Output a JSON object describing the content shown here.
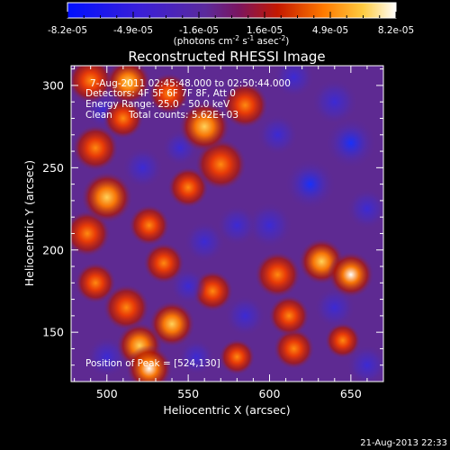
{
  "chart_data": {
    "type": "heatmap",
    "title": "Reconstructed RHESSI Image",
    "xlabel": "Heliocentric X (arcsec)",
    "ylabel": "Heliocentric Y (arcsec)",
    "xlim": [
      478,
      670
    ],
    "ylim": [
      120,
      312
    ],
    "x_ticks": [
      500,
      550,
      600,
      650
    ],
    "y_ticks": [
      150,
      200,
      250,
      300
    ],
    "colorbar": {
      "ticks": [
        "-8.2e-05",
        "-4.9e-05",
        "-1.6e-05",
        "1.6e-05",
        "4.9e-05",
        "8.2e-05"
      ],
      "label_parts": [
        "(photons cm",
        "-2",
        " s",
        "-1",
        " asec",
        "-2",
        ")"
      ],
      "range": [
        -8.2e-05,
        8.2e-05
      ]
    },
    "annotations": {
      "time_range": "7-Aug-2011 02:45:48.000 to 02:50:44.000",
      "detectors": "Detectors: 4F 5F 6F 7F 8F, Att 0",
      "energy": "Energy Range: 25.0 - 50.0 keV",
      "method": "Clean",
      "total_counts": "Total counts: 5.62E+03",
      "position_of_peak": "Position of Peak = [524,130]"
    },
    "peak": [
      524,
      130
    ],
    "blobs": [
      {
        "x": 490,
        "y": 303,
        "a": 0.9,
        "r": 9
      },
      {
        "x": 513,
        "y": 302,
        "a": 1.0,
        "r": 9
      },
      {
        "x": 538,
        "y": 295,
        "a": 0.8,
        "r": 8
      },
      {
        "x": 510,
        "y": 280,
        "a": 0.7,
        "r": 8
      },
      {
        "x": 493,
        "y": 262,
        "a": 0.8,
        "r": 9
      },
      {
        "x": 500,
        "y": 232,
        "a": 1.2,
        "r": 10
      },
      {
        "x": 488,
        "y": 210,
        "a": 0.9,
        "r": 9
      },
      {
        "x": 526,
        "y": 215,
        "a": 0.6,
        "r": 8
      },
      {
        "x": 560,
        "y": 275,
        "a": 1.0,
        "r": 10
      },
      {
        "x": 570,
        "y": 252,
        "a": 0.9,
        "r": 10
      },
      {
        "x": 550,
        "y": 238,
        "a": 0.8,
        "r": 8
      },
      {
        "x": 585,
        "y": 288,
        "a": 0.6,
        "r": 9
      },
      {
        "x": 535,
        "y": 192,
        "a": 0.7,
        "r": 8
      },
      {
        "x": 493,
        "y": 180,
        "a": 0.6,
        "r": 8
      },
      {
        "x": 512,
        "y": 165,
        "a": 0.8,
        "r": 9
      },
      {
        "x": 540,
        "y": 155,
        "a": 1.0,
        "r": 9
      },
      {
        "x": 520,
        "y": 142,
        "a": 1.1,
        "r": 9
      },
      {
        "x": 526,
        "y": 128,
        "a": 1.5,
        "r": 9
      },
      {
        "x": 565,
        "y": 175,
        "a": 0.5,
        "r": 8
      },
      {
        "x": 605,
        "y": 185,
        "a": 0.8,
        "r": 9
      },
      {
        "x": 632,
        "y": 193,
        "a": 1.0,
        "r": 9
      },
      {
        "x": 650,
        "y": 185,
        "a": 1.3,
        "r": 9
      },
      {
        "x": 612,
        "y": 160,
        "a": 0.7,
        "r": 8
      },
      {
        "x": 615,
        "y": 140,
        "a": 0.6,
        "r": 8
      },
      {
        "x": 580,
        "y": 135,
        "a": 0.5,
        "r": 7
      },
      {
        "x": 645,
        "y": 145,
        "a": 0.6,
        "r": 7
      },
      {
        "x": 600,
        "y": 215,
        "a": -0.9,
        "r": 9
      },
      {
        "x": 625,
        "y": 240,
        "a": -1.1,
        "r": 10
      },
      {
        "x": 650,
        "y": 265,
        "a": -1.0,
        "r": 10
      },
      {
        "x": 640,
        "y": 290,
        "a": -0.9,
        "r": 9
      },
      {
        "x": 605,
        "y": 270,
        "a": -0.7,
        "r": 8
      },
      {
        "x": 580,
        "y": 215,
        "a": -0.9,
        "r": 8
      },
      {
        "x": 560,
        "y": 205,
        "a": -0.7,
        "r": 8
      },
      {
        "x": 545,
        "y": 262,
        "a": -0.8,
        "r": 7
      },
      {
        "x": 522,
        "y": 250,
        "a": -0.8,
        "r": 8
      },
      {
        "x": 498,
        "y": 285,
        "a": -0.5,
        "r": 7
      },
      {
        "x": 550,
        "y": 178,
        "a": -0.6,
        "r": 7
      },
      {
        "x": 585,
        "y": 160,
        "a": -0.7,
        "r": 8
      },
      {
        "x": 640,
        "y": 165,
        "a": -0.8,
        "r": 8
      },
      {
        "x": 660,
        "y": 225,
        "a": -0.6,
        "r": 8
      },
      {
        "x": 500,
        "y": 135,
        "a": -0.7,
        "r": 8
      },
      {
        "x": 555,
        "y": 135,
        "a": -0.6,
        "r": 7
      },
      {
        "x": 660,
        "y": 130,
        "a": -0.5,
        "r": 8
      },
      {
        "x": 615,
        "y": 305,
        "a": -0.4,
        "r": 8
      }
    ]
  }
}
